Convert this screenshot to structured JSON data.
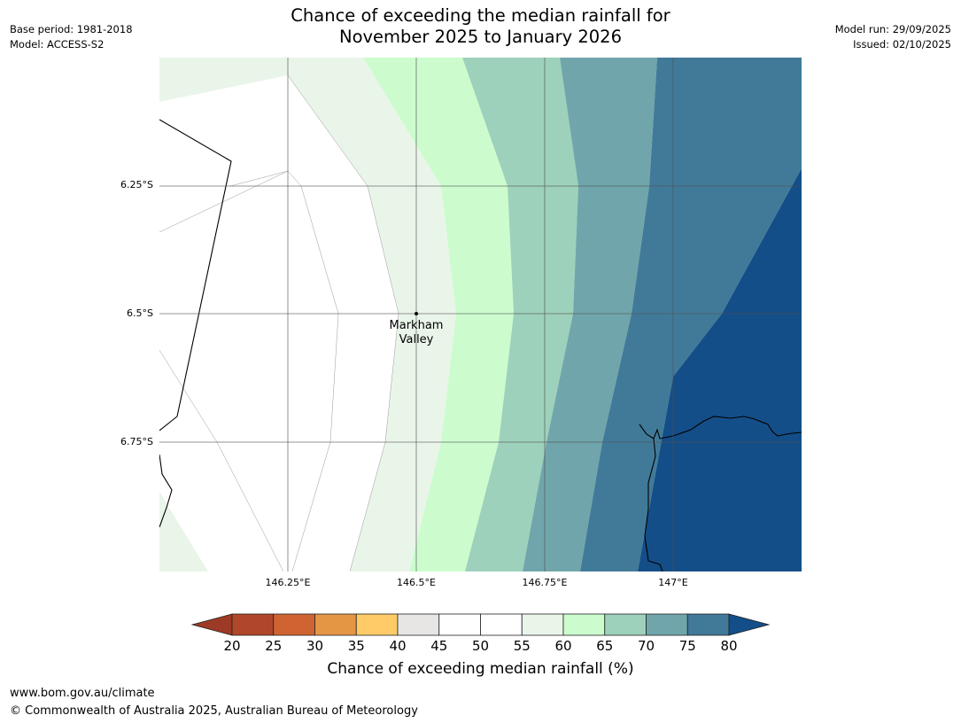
{
  "header": {
    "title_line1": "Chance of exceeding the median rainfall for",
    "title_line2": "November 2025 to January 2026",
    "base_period": "Base period: 1981-2018",
    "model": "Model: ACCESS-S2",
    "model_run": "Model run: 29/09/2025",
    "issued": "Issued: 02/10/2025"
  },
  "map": {
    "lat_labels": [
      "6.25°S",
      "6.5°S",
      "6.75°S"
    ],
    "lon_labels": [
      "146.25°E",
      "146.5°E",
      "146.75°E",
      "147°E"
    ],
    "place": {
      "name_line1": "Markham",
      "name_line2": "Valley"
    },
    "bands": [
      {
        "range": "55-60",
        "color": "#eaf5ea"
      },
      {
        "range": "60-65",
        "color": "#ccfcce"
      },
      {
        "range": "65-70",
        "color": "#9dd1bb"
      },
      {
        "range": "70-75",
        "color": "#70a6ab"
      },
      {
        "range": "75-80",
        "color": "#417a99"
      },
      {
        "range": ">80",
        "color": "#144e88"
      }
    ]
  },
  "colorbar": {
    "label": "Chance of exceeding median rainfall (%)",
    "ticks": [
      "20",
      "25",
      "30",
      "35",
      "40",
      "45",
      "50",
      "55",
      "60",
      "65",
      "70",
      "75",
      "80"
    ],
    "under_color": "#9c3a25",
    "over_color": "#144e88",
    "colors": [
      "#b1472a",
      "#cf6432",
      "#e49645",
      "#fecb68",
      "#e8e6e5",
      "#ffffff",
      "#ffffff",
      "#eaf5ea",
      "#ccfcce",
      "#9dd1bb",
      "#70a6ab",
      "#417a99"
    ]
  },
  "footer": {
    "url": "www.bom.gov.au/climate",
    "copyright": "© Commonwealth of Australia 2025, Australian Bureau of Meteorology"
  }
}
